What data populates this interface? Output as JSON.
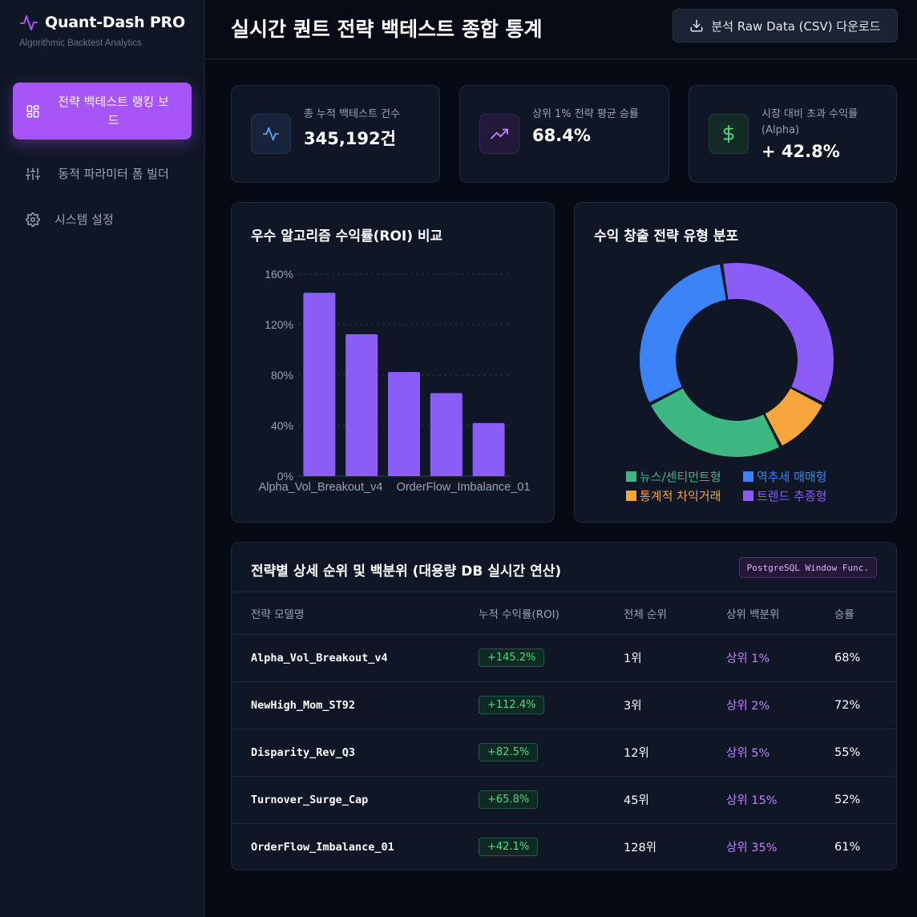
{
  "brand": {
    "title": "Quant-Dash PRO",
    "subtitle": "Algorithmic Backtest Analytics"
  },
  "sidebar": {
    "items": [
      {
        "label": "전략 백테스트 랭킹 보드",
        "icon": "grid-icon",
        "active": true
      },
      {
        "label": "동적 파라미터 폼 빌더",
        "icon": "sliders-icon",
        "active": false
      },
      {
        "label": "시스템 설정",
        "icon": "gear-icon",
        "active": false
      }
    ]
  },
  "header": {
    "title": "실시간 퀀트 전략 백테스트 종합 통계",
    "download_label": "분석 Raw Data (CSV) 다운로드"
  },
  "stats": [
    {
      "label": "총 누적 백테스트 건수",
      "value": "345,192건",
      "icon": "activity-icon",
      "color": "#60a5fa"
    },
    {
      "label": "상위 1% 전략 평균 승률",
      "value": "68.4%",
      "icon": "trending-up-icon",
      "color": "#c084fc"
    },
    {
      "label": "시장 대비 초과 수익률 (Alpha)",
      "value": "+ 42.8%",
      "icon": "dollar-icon",
      "color": "#4ade80"
    }
  ],
  "bar_card": {
    "title": "우수 알고리즘 수익률(ROI) 비교"
  },
  "pie_card": {
    "title": "수익 창출 전략 유형 분포"
  },
  "chart_data": [
    {
      "type": "bar",
      "title": "우수 알고리즘 수익률(ROI) 비교",
      "categories": [
        "Alpha_Vol_Breakout_v4",
        "NewHigh_Mom_ST92",
        "Disparity_Rev_Q3",
        "Turnover_Surge_Cap",
        "OrderFlow_Imbalance_01"
      ],
      "shown_x_labels": [
        "Alpha_Vol_Breakout_v4",
        "OrderFlow_Imbalance_01"
      ],
      "values": [
        145.2,
        112.4,
        82.5,
        65.8,
        42.1
      ],
      "ylim": [
        0,
        160
      ],
      "y_ticks": [
        "0%",
        "40%",
        "80%",
        "120%",
        "160%"
      ],
      "grid": true,
      "color": "#8b5cf6"
    },
    {
      "type": "pie",
      "title": "수익 창출 전략 유형 분포",
      "donut": true,
      "slices": [
        {
          "label": "트렌드 추종형",
          "value": 35,
          "color": "#8b5cf6"
        },
        {
          "label": "통계적 차익거래",
          "value": 10,
          "color": "#f5a53b"
        },
        {
          "label": "뉴스/센티먼트형",
          "value": 25,
          "color": "#3eb882"
        },
        {
          "label": "역추세 매매형",
          "value": 30,
          "color": "#3b82f6"
        }
      ],
      "legend": [
        {
          "label": "뉴스/센티먼트형",
          "color": "#3eb882"
        },
        {
          "label": "역추세 매매형",
          "color": "#3b82f6"
        },
        {
          "label": "통계적 차익거래",
          "color": "#f5a53b"
        },
        {
          "label": "트렌드 추종형",
          "color": "#8b5cf6"
        }
      ],
      "legend_position": "bottom"
    }
  ],
  "table": {
    "title": "전략별 상세 순위 및 백분위 (대용량 DB 실시간 연산)",
    "badge": "PostgreSQL Window Func.",
    "columns": [
      "전략 모델명",
      "누적 수익률(ROI)",
      "전체 순위",
      "상위 백분위",
      "승률"
    ],
    "rows": [
      {
        "model": "Alpha_Vol_Breakout_v4",
        "roi": "+145.2%",
        "rank": "1위",
        "pct": "상위 1%",
        "win": "68%"
      },
      {
        "model": "NewHigh_Mom_ST92",
        "roi": "+112.4%",
        "rank": "3위",
        "pct": "상위 2%",
        "win": "72%"
      },
      {
        "model": "Disparity_Rev_Q3",
        "roi": "+82.5%",
        "rank": "12위",
        "pct": "상위 5%",
        "win": "55%"
      },
      {
        "model": "Turnover_Surge_Cap",
        "roi": "+65.8%",
        "rank": "45위",
        "pct": "상위 15%",
        "win": "52%"
      },
      {
        "model": "OrderFlow_Imbalance_01",
        "roi": "+42.1%",
        "rank": "128위",
        "pct": "상위 35%",
        "win": "61%"
      }
    ]
  }
}
